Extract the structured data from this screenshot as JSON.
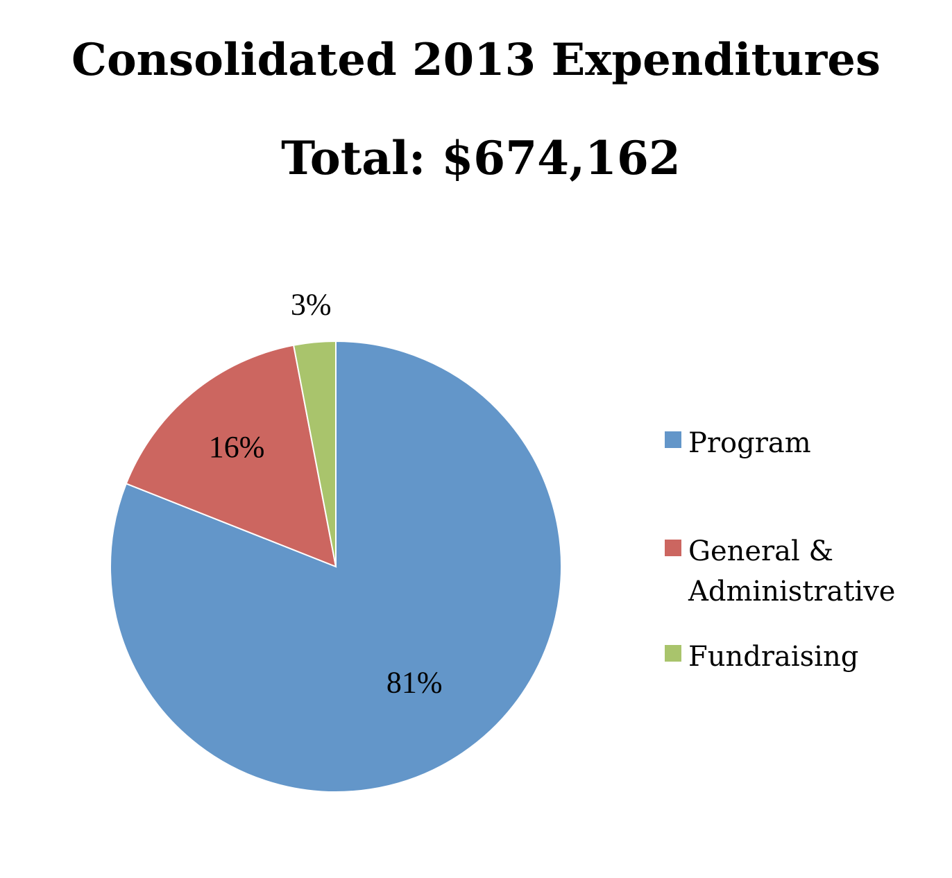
{
  "chart_data": {
    "type": "pie",
    "title": "Consolidated 2013 Expenditures",
    "subtitle": "Total: $674,162",
    "slices": [
      {
        "name": "Program",
        "value": 81,
        "label": "81%",
        "color": "#6396c9"
      },
      {
        "name": "General & Administrative",
        "value": 16,
        "label": "16%",
        "color": "#cc6660",
        "legend_lines": [
          "General &",
          "Administrative"
        ]
      },
      {
        "name": "Fundraising",
        "value": 3,
        "label": "3%",
        "color": "#a9c46c"
      }
    ],
    "start_angle": "12 o'clock",
    "direction": "clockwise",
    "legend_placement": "right"
  }
}
